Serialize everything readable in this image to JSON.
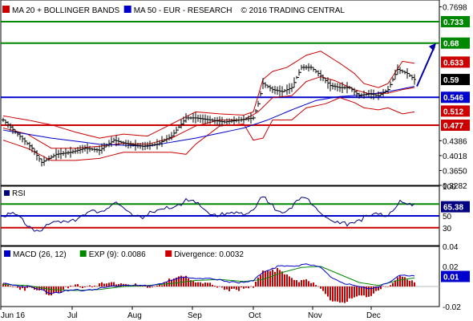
{
  "chart_data": [
    {
      "type": "line",
      "panel": "price",
      "legend": [
        {
          "swatch_color": "#cc0000",
          "label": "MA 20 + BOLLINGER BANDS"
        },
        {
          "swatch_color": "#0000cc",
          "label": "MA 50 - EUR - RESEARCH"
        },
        {
          "swatch_color": "",
          "label": "© 2016 TRADING CENTRAL"
        }
      ],
      "x_labels": [
        "Jun 16",
        "Jul",
        "Aug",
        "Sep",
        "Oct",
        "Nov",
        "Dec"
      ],
      "y_ticks": [
        "0.7698",
        "0.733",
        "0.68",
        "0.633",
        "0.59",
        "0.546",
        "0.512",
        "0.477",
        "0.4386",
        "0.4018",
        "0.3650",
        "0.3282"
      ],
      "ylim": [
        0.3282,
        0.7866
      ],
      "tags": [
        {
          "label": "0.733",
          "value": 0.733,
          "color": "#008800"
        },
        {
          "label": "0.68",
          "value": 0.68,
          "color": "#008800"
        },
        {
          "label": "0.633",
          "value": 0.633,
          "color": "#cc0000"
        },
        {
          "label": "0.59",
          "value": 0.59,
          "color": "#000000"
        },
        {
          "label": "0.546",
          "value": 0.546,
          "color": "#0000cc"
        },
        {
          "label": "0.512",
          "value": 0.512,
          "color": "#cc0000"
        },
        {
          "label": "0.477",
          "value": 0.477,
          "color": "#cc0000"
        }
      ],
      "hlines": [
        {
          "value": 0.733,
          "color": "#008800"
        },
        {
          "value": 0.68,
          "color": "#008800"
        },
        {
          "value": 0.546,
          "color": "#0000cc"
        },
        {
          "value": 0.477,
          "color": "#cc0000"
        }
      ],
      "arrow": {
        "from": [
          172,
          0.573
        ],
        "to": [
          180,
          0.68
        ],
        "color": "#0000aa"
      },
      "price_keys": [
        [
          0,
          0.49
        ],
        [
          6,
          0.455
        ],
        [
          12,
          0.42
        ],
        [
          16,
          0.385
        ],
        [
          22,
          0.405
        ],
        [
          28,
          0.41
        ],
        [
          34,
          0.42
        ],
        [
          40,
          0.415
        ],
        [
          46,
          0.44
        ],
        [
          52,
          0.43
        ],
        [
          58,
          0.425
        ],
        [
          64,
          0.43
        ],
        [
          70,
          0.45
        ],
        [
          76,
          0.495
        ],
        [
          80,
          0.495
        ],
        [
          86,
          0.49
        ],
        [
          92,
          0.485
        ],
        [
          98,
          0.49
        ],
        [
          104,
          0.495
        ],
        [
          106,
          0.53
        ],
        [
          108,
          0.58
        ],
        [
          112,
          0.565
        ],
        [
          116,
          0.56
        ],
        [
          120,
          0.57
        ],
        [
          124,
          0.62
        ],
        [
          128,
          0.62
        ],
        [
          132,
          0.6
        ],
        [
          136,
          0.575
        ],
        [
          140,
          0.57
        ],
        [
          144,
          0.57
        ],
        [
          148,
          0.55
        ],
        [
          152,
          0.555
        ],
        [
          156,
          0.55
        ],
        [
          160,
          0.565
        ],
        [
          164,
          0.615
        ],
        [
          168,
          0.605
        ],
        [
          171,
          0.59
        ]
      ],
      "ma20_keys": [
        [
          0,
          0.47
        ],
        [
          10,
          0.455
        ],
        [
          20,
          0.42
        ],
        [
          30,
          0.42
        ],
        [
          40,
          0.425
        ],
        [
          50,
          0.432
        ],
        [
          60,
          0.43
        ],
        [
          70,
          0.445
        ],
        [
          80,
          0.475
        ],
        [
          90,
          0.49
        ],
        [
          100,
          0.49
        ],
        [
          106,
          0.51
        ],
        [
          112,
          0.545
        ],
        [
          120,
          0.55
        ],
        [
          126,
          0.585
        ],
        [
          132,
          0.597
        ],
        [
          138,
          0.587
        ],
        [
          146,
          0.565
        ],
        [
          152,
          0.555
        ],
        [
          160,
          0.556
        ],
        [
          166,
          0.565
        ],
        [
          171,
          0.57
        ]
      ],
      "ma50_keys": [
        [
          0,
          0.465
        ],
        [
          20,
          0.445
        ],
        [
          40,
          0.43
        ],
        [
          60,
          0.425
        ],
        [
          80,
          0.445
        ],
        [
          100,
          0.47
        ],
        [
          110,
          0.49
        ],
        [
          120,
          0.515
        ],
        [
          130,
          0.538
        ],
        [
          140,
          0.548
        ],
        [
          150,
          0.552
        ],
        [
          160,
          0.56
        ],
        [
          171,
          0.573
        ]
      ],
      "bb_upper_keys": [
        [
          0,
          0.5
        ],
        [
          10,
          0.49
        ],
        [
          20,
          0.478
        ],
        [
          30,
          0.46
        ],
        [
          40,
          0.445
        ],
        [
          50,
          0.455
        ],
        [
          60,
          0.45
        ],
        [
          70,
          0.48
        ],
        [
          80,
          0.51
        ],
        [
          90,
          0.505
        ],
        [
          100,
          0.502
        ],
        [
          104,
          0.51
        ],
        [
          108,
          0.59
        ],
        [
          112,
          0.61
        ],
        [
          118,
          0.62
        ],
        [
          126,
          0.65
        ],
        [
          132,
          0.66
        ],
        [
          140,
          0.63
        ],
        [
          146,
          0.605
        ],
        [
          150,
          0.58
        ],
        [
          156,
          0.57
        ],
        [
          160,
          0.58
        ],
        [
          166,
          0.635
        ],
        [
          171,
          0.63
        ]
      ],
      "bb_lower_keys": [
        [
          0,
          0.44
        ],
        [
          10,
          0.42
        ],
        [
          20,
          0.39
        ],
        [
          30,
          0.39
        ],
        [
          40,
          0.395
        ],
        [
          50,
          0.41
        ],
        [
          60,
          0.41
        ],
        [
          70,
          0.41
        ],
        [
          76,
          0.405
        ],
        [
          80,
          0.43
        ],
        [
          90,
          0.475
        ],
        [
          100,
          0.48
        ],
        [
          104,
          0.44
        ],
        [
          108,
          0.445
        ],
        [
          112,
          0.49
        ],
        [
          120,
          0.49
        ],
        [
          126,
          0.52
        ],
        [
          134,
          0.53
        ],
        [
          140,
          0.545
        ],
        [
          146,
          0.533
        ],
        [
          150,
          0.52
        ],
        [
          156,
          0.515
        ],
        [
          160,
          0.52
        ],
        [
          166,
          0.505
        ],
        [
          171,
          0.51
        ]
      ]
    },
    {
      "type": "line",
      "panel": "rsi",
      "legend": [
        {
          "swatch_color": "#000080",
          "label": "RSI"
        }
      ],
      "y_ticks": [
        "100",
        "70",
        "50",
        "30"
      ],
      "ylim": [
        0,
        100
      ],
      "tag": {
        "label": "65.38",
        "value": 65.38,
        "color": "#000080"
      },
      "hlines": [
        {
          "value": 70,
          "color": "#008800"
        },
        {
          "value": 50,
          "color": "#0000cc"
        },
        {
          "value": 30,
          "color": "#cc0000"
        }
      ],
      "keys": [
        [
          0,
          55
        ],
        [
          6,
          48
        ],
        [
          12,
          30
        ],
        [
          16,
          25
        ],
        [
          22,
          40
        ],
        [
          28,
          45
        ],
        [
          34,
          50
        ],
        [
          40,
          60
        ],
        [
          46,
          70
        ],
        [
          52,
          55
        ],
        [
          58,
          50
        ],
        [
          64,
          55
        ],
        [
          70,
          65
        ],
        [
          76,
          75
        ],
        [
          80,
          70
        ],
        [
          86,
          55
        ],
        [
          92,
          50
        ],
        [
          98,
          55
        ],
        [
          104,
          60
        ],
        [
          108,
          80
        ],
        [
          112,
          65
        ],
        [
          116,
          60
        ],
        [
          120,
          65
        ],
        [
          124,
          78
        ],
        [
          128,
          75
        ],
        [
          132,
          60
        ],
        [
          136,
          40
        ],
        [
          140,
          35
        ],
        [
          144,
          40
        ],
        [
          148,
          45
        ],
        [
          152,
          48
        ],
        [
          156,
          50
        ],
        [
          160,
          52
        ],
        [
          164,
          72
        ],
        [
          168,
          68
        ],
        [
          171,
          65
        ]
      ]
    },
    {
      "type": "bar",
      "panel": "macd",
      "legend": [
        {
          "swatch_color": "#0000cc",
          "label": "MACD (26, 12)"
        },
        {
          "swatch_color": "#008800",
          "label": "EXP (9): 0.0086"
        },
        {
          "swatch_color": "#cc0000",
          "label": "Divergence: 0.0032"
        }
      ],
      "y_ticks": [
        "0.04",
        "0.02",
        "-0.02"
      ],
      "ylim": [
        -0.02,
        0.04
      ],
      "tag": {
        "label": "0.01",
        "value": 0.01,
        "color": "#0000cc"
      },
      "macd_keys": [
        [
          0,
          0.003
        ],
        [
          10,
          0.0
        ],
        [
          20,
          -0.006
        ],
        [
          30,
          -0.004
        ],
        [
          40,
          -0.002
        ],
        [
          50,
          0.002
        ],
        [
          60,
          0.0
        ],
        [
          70,
          0.006
        ],
        [
          76,
          0.009
        ],
        [
          80,
          0.009
        ],
        [
          90,
          0.006
        ],
        [
          100,
          0.004
        ],
        [
          104,
          0.005
        ],
        [
          108,
          0.015
        ],
        [
          114,
          0.02
        ],
        [
          120,
          0.02
        ],
        [
          126,
          0.023
        ],
        [
          132,
          0.018
        ],
        [
          136,
          0.01
        ],
        [
          140,
          0.005
        ],
        [
          146,
          0.0
        ],
        [
          150,
          -0.002
        ],
        [
          156,
          0.0
        ],
        [
          160,
          0.003
        ],
        [
          166,
          0.012
        ],
        [
          171,
          0.011
        ]
      ],
      "signal_keys": [
        [
          0,
          0.002
        ],
        [
          10,
          0.001
        ],
        [
          20,
          -0.003
        ],
        [
          30,
          -0.004
        ],
        [
          40,
          -0.003
        ],
        [
          50,
          0.0
        ],
        [
          60,
          0.001
        ],
        [
          70,
          0.003
        ],
        [
          80,
          0.006
        ],
        [
          90,
          0.007
        ],
        [
          100,
          0.005
        ],
        [
          108,
          0.007
        ],
        [
          116,
          0.014
        ],
        [
          124,
          0.019
        ],
        [
          132,
          0.02
        ],
        [
          140,
          0.012
        ],
        [
          148,
          0.004
        ],
        [
          156,
          0.001
        ],
        [
          164,
          0.006
        ],
        [
          171,
          0.0086
        ]
      ]
    }
  ]
}
